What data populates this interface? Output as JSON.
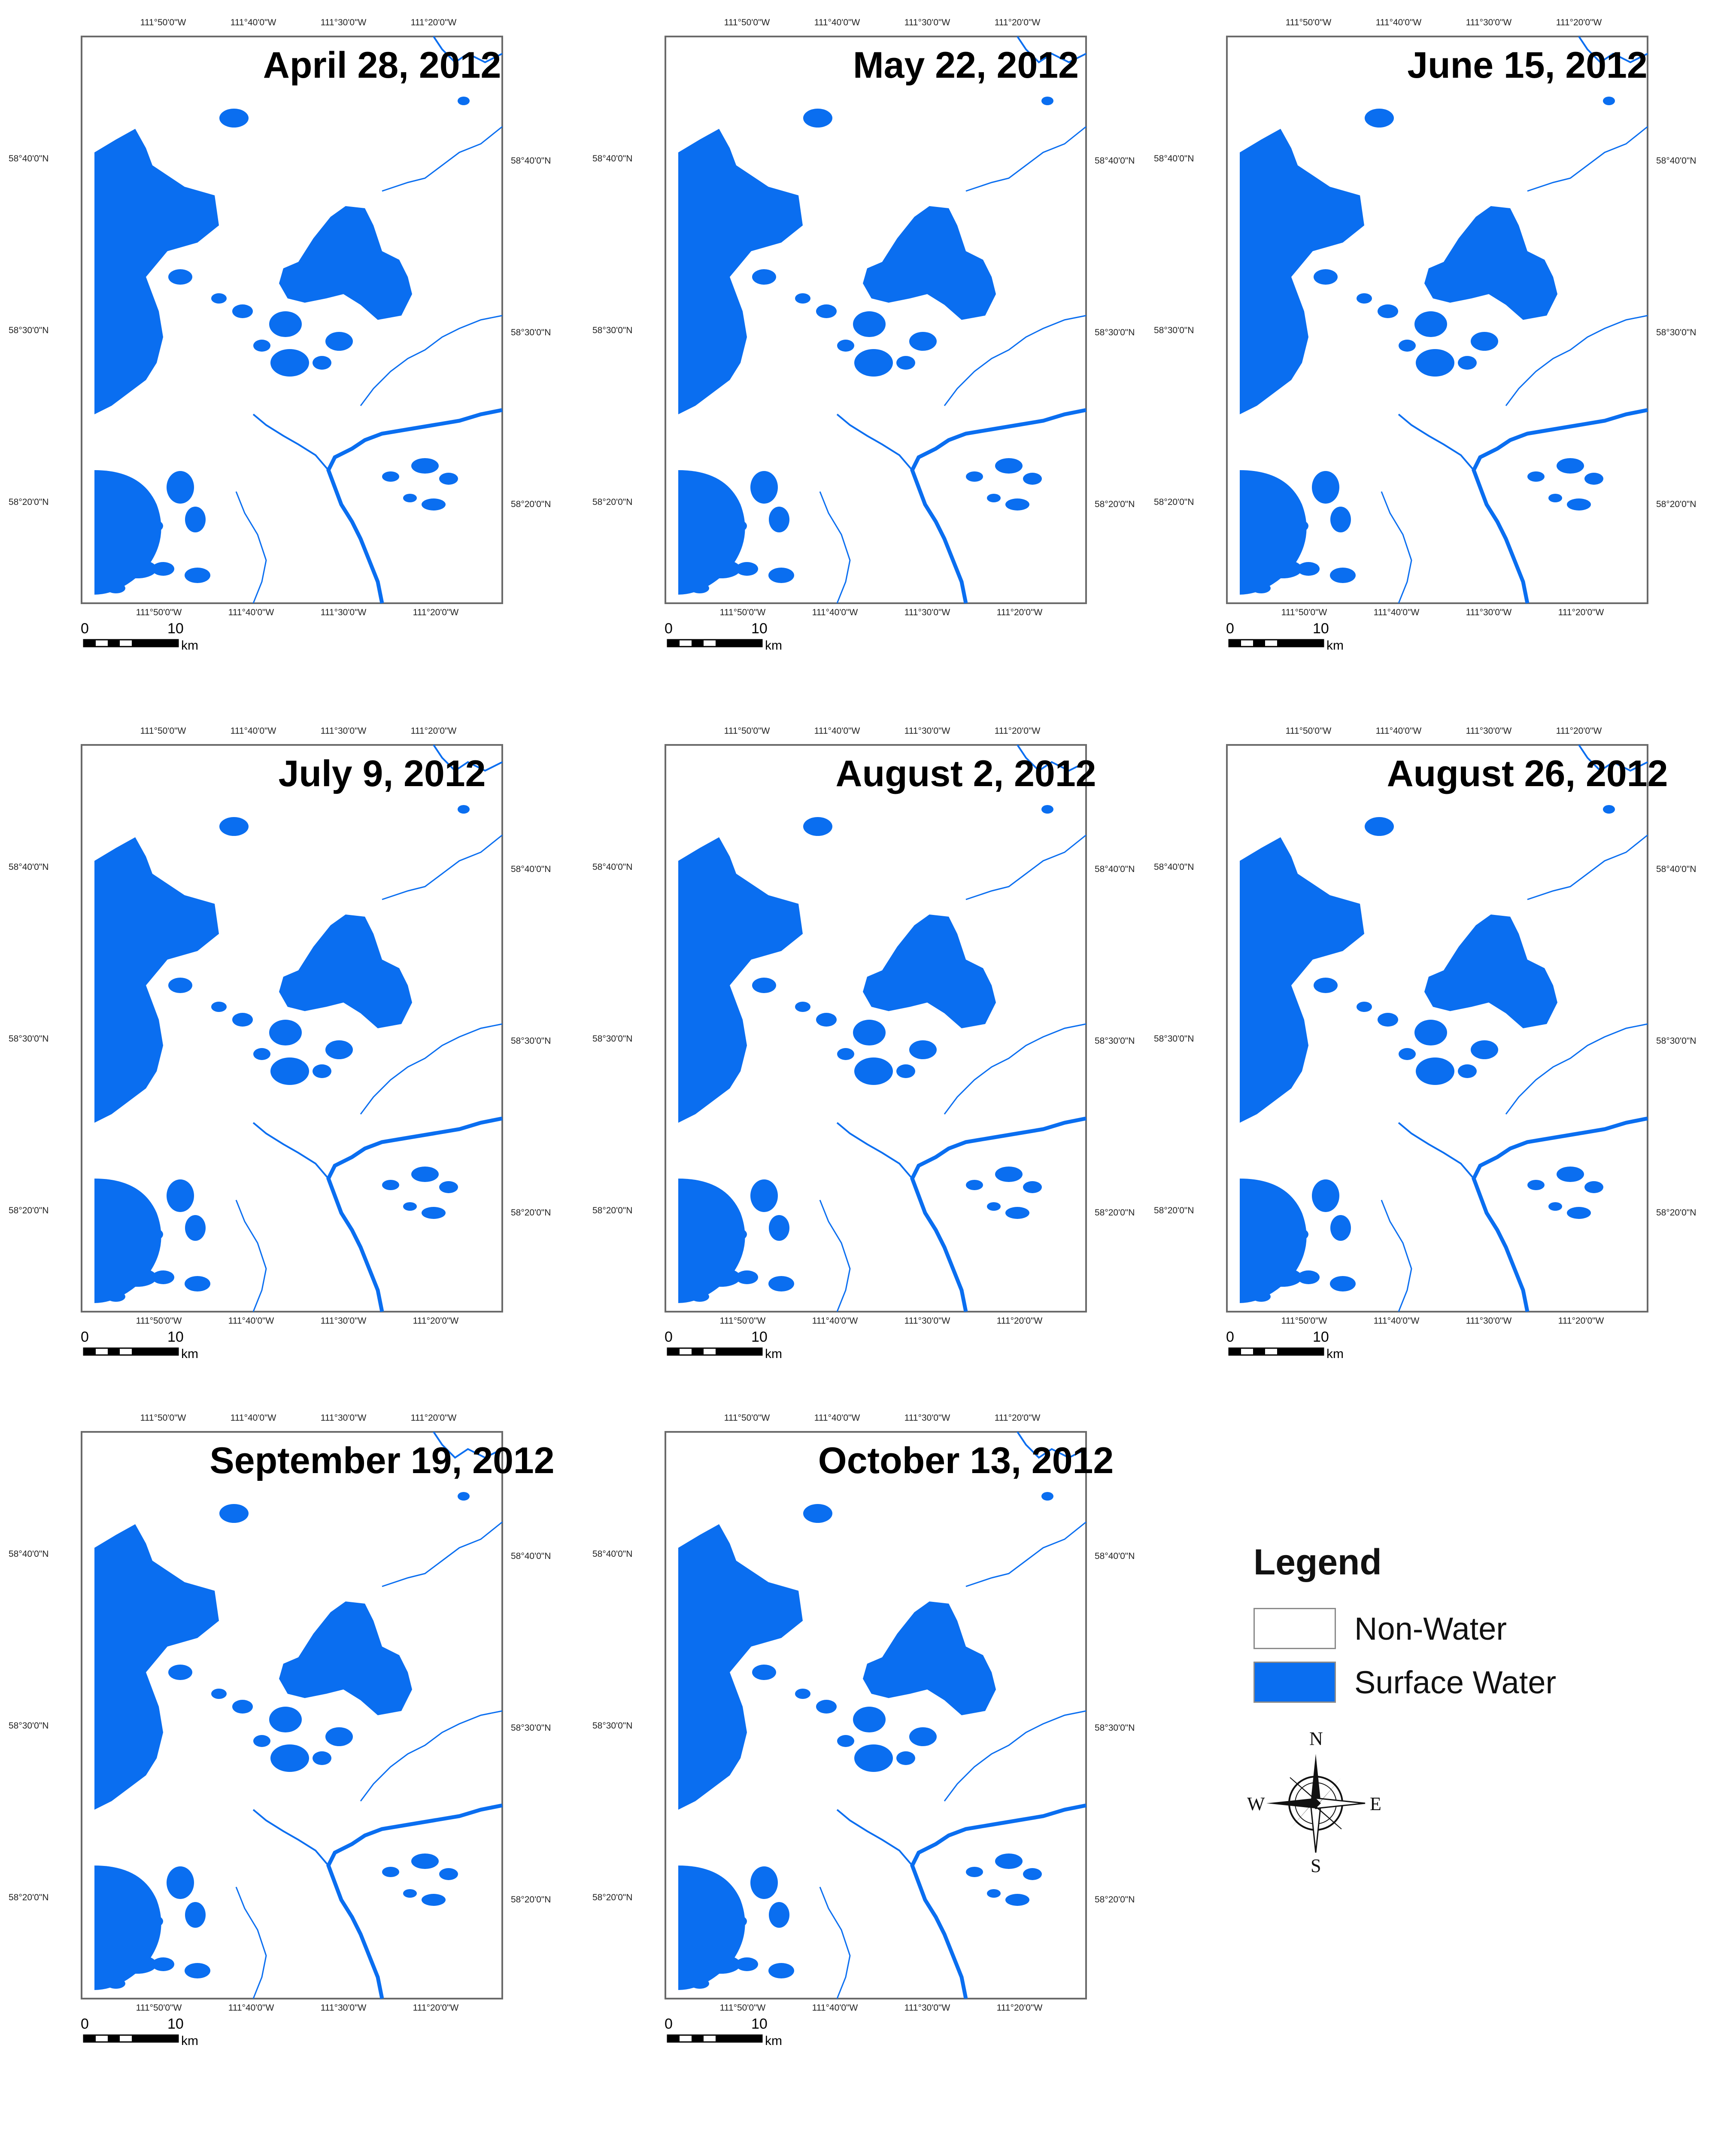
{
  "lat_labels": [
    "58°40'0\"N",
    "58°30'0\"N",
    "58°20'0\"N"
  ],
  "lon_top_labels": [
    "111°50'0\"W",
    "111°40'0\"W",
    "111°30'0\"W",
    "111°20'0\"W"
  ],
  "lon_bottom_labels": [
    "111°50'0\"W",
    "111°40'0\"W",
    "111°30'0\"W",
    "111°20'0\"W"
  ],
  "scale_bar": {
    "start": "0",
    "end": "10",
    "unit": "km"
  },
  "panels": [
    {
      "title": "April 28, 2012"
    },
    {
      "title": "May 22, 2012"
    },
    {
      "title": "June 15, 2012"
    },
    {
      "title": "July 9, 2012"
    },
    {
      "title": "August 2, 2012"
    },
    {
      "title": "August 26, 2012"
    },
    {
      "title": "September 19, 2012"
    },
    {
      "title": "October 13, 2012"
    }
  ],
  "legend": {
    "title": "Legend",
    "items": [
      {
        "label": "Non-Water",
        "color": "#ffffff"
      },
      {
        "label": "Surface Water",
        "color": "#0a6ef0"
      }
    ]
  },
  "compass": {
    "n": "N",
    "s": "S",
    "e": "E",
    "w": "W"
  },
  "colors": {
    "water": "#0a6ef0",
    "frame": "#6a6a6a"
  }
}
